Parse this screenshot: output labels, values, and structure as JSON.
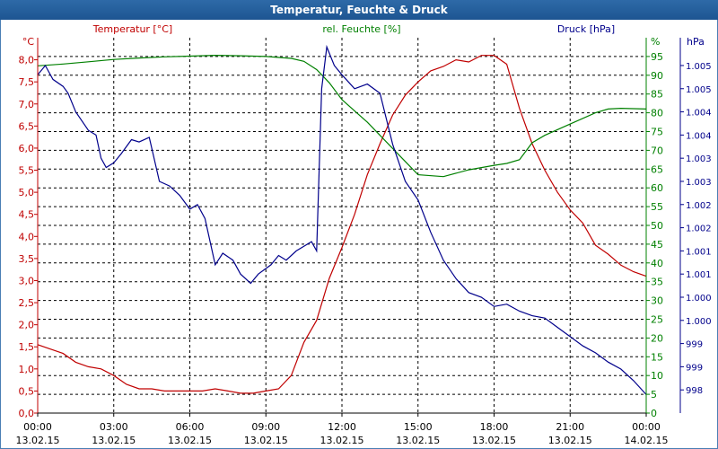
{
  "window": {
    "title": "Temperatur, Feuchte & Druck"
  },
  "colors": {
    "temperature": "#c00000",
    "humidity": "#008000",
    "pressure": "#00008b",
    "grid": "#000000",
    "titlebar": "#1d5592"
  },
  "chart_data": {
    "type": "line",
    "grid": true,
    "legend": "top",
    "x": {
      "range": [
        "2015-02-13 00:00",
        "2015-02-14 00:00"
      ],
      "ticks": [
        {
          "time": "00:00",
          "date": "13.02.15"
        },
        {
          "time": "03:00",
          "date": "13.02.15"
        },
        {
          "time": "06:00",
          "date": "13.02.15"
        },
        {
          "time": "09:00",
          "date": "13.02.15"
        },
        {
          "time": "12:00",
          "date": "13.02.15"
        },
        {
          "time": "15:00",
          "date": "13.02.15"
        },
        {
          "time": "18:00",
          "date": "13.02.15"
        },
        {
          "time": "21:00",
          "date": "13.02.15"
        },
        {
          "time": "00:00",
          "date": "14.02.15"
        }
      ]
    },
    "axes": {
      "temperature": {
        "label": "Temperatur [°C]",
        "unit": "°C",
        "ylim": [
          0,
          8.5
        ],
        "ticks": [
          "0,0",
          "0,5",
          "1,0",
          "1,5",
          "2,0",
          "2,5",
          "3,0",
          "3,5",
          "4,0",
          "4,5",
          "5,0",
          "5,5",
          "6,0",
          "6,5",
          "7,0",
          "7,5",
          "8,0"
        ]
      },
      "humidity": {
        "label": "rel. Feuchte [%]",
        "unit": "%",
        "ylim": [
          0,
          100
        ],
        "ticks": [
          "0",
          "5",
          "10",
          "15",
          "20",
          "25",
          "30",
          "35",
          "40",
          "45",
          "50",
          "55",
          "60",
          "65",
          "70",
          "75",
          "80",
          "85",
          "90",
          "95"
        ]
      },
      "pressure": {
        "label": "Druck [hPa]",
        "unit": "hPa",
        "ylim": [
          997.5,
          1005.6
        ],
        "ticks": [
          {
            "v": 998.0,
            "t": "998"
          },
          {
            "v": 998.5,
            "t": "999"
          },
          {
            "v": 999.0,
            "t": "999"
          },
          {
            "v": 999.5,
            "t": "1.000"
          },
          {
            "v": 1000.0,
            "t": "1.000"
          },
          {
            "v": 1000.5,
            "t": "1.001"
          },
          {
            "v": 1001.0,
            "t": "1.001"
          },
          {
            "v": 1001.5,
            "t": "1.002"
          },
          {
            "v": 1002.0,
            "t": "1.002"
          },
          {
            "v": 1002.5,
            "t": "1.003"
          },
          {
            "v": 1003.0,
            "t": "1.003"
          },
          {
            "v": 1003.5,
            "t": "1.004"
          },
          {
            "v": 1004.0,
            "t": "1.004"
          },
          {
            "v": 1004.5,
            "t": "1.005"
          },
          {
            "v": 1005.0,
            "t": "1.005"
          }
        ]
      }
    },
    "series": [
      {
        "name": "Temperatur [°C]",
        "axis": "temperature",
        "points": [
          [
            0,
            1.55
          ],
          [
            0.5,
            1.45
          ],
          [
            1,
            1.35
          ],
          [
            1.5,
            1.15
          ],
          [
            2,
            1.05
          ],
          [
            2.5,
            1.0
          ],
          [
            3,
            0.85
          ],
          [
            3.5,
            0.65
          ],
          [
            4,
            0.55
          ],
          [
            4.5,
            0.55
          ],
          [
            5,
            0.5
          ],
          [
            5.5,
            0.5
          ],
          [
            6,
            0.5
          ],
          [
            6.5,
            0.5
          ],
          [
            7,
            0.55
          ],
          [
            7.5,
            0.5
          ],
          [
            8,
            0.45
          ],
          [
            8.5,
            0.45
          ],
          [
            9,
            0.5
          ],
          [
            9.5,
            0.55
          ],
          [
            10,
            0.85
          ],
          [
            10.5,
            1.6
          ],
          [
            11,
            2.1
          ],
          [
            11.5,
            3.05
          ],
          [
            12,
            3.75
          ],
          [
            12.5,
            4.5
          ],
          [
            13,
            5.4
          ],
          [
            13.5,
            6.1
          ],
          [
            14,
            6.75
          ],
          [
            14.5,
            7.2
          ],
          [
            15,
            7.5
          ],
          [
            15.5,
            7.75
          ],
          [
            16,
            7.85
          ],
          [
            16.5,
            8.0
          ],
          [
            17,
            7.95
          ],
          [
            17.5,
            8.1
          ],
          [
            18,
            8.1
          ],
          [
            18.5,
            7.9
          ],
          [
            19,
            6.9
          ],
          [
            19.5,
            6.1
          ],
          [
            20,
            5.5
          ],
          [
            20.5,
            5.0
          ],
          [
            21,
            4.6
          ],
          [
            21.5,
            4.3
          ],
          [
            22,
            3.8
          ],
          [
            22.5,
            3.6
          ],
          [
            23,
            3.35
          ],
          [
            23.5,
            3.2
          ],
          [
            24,
            3.1
          ]
        ]
      },
      {
        "name": "rel. Feuchte [%]",
        "axis": "humidity",
        "points": [
          [
            0,
            92.5
          ],
          [
            1,
            93
          ],
          [
            2,
            93.6
          ],
          [
            3,
            94.2
          ],
          [
            4,
            94.6
          ],
          [
            5,
            94.9
          ],
          [
            6,
            95.1
          ],
          [
            7,
            95.3
          ],
          [
            8,
            95.2
          ],
          [
            9,
            95
          ],
          [
            10,
            94.5
          ],
          [
            10.5,
            93.7
          ],
          [
            11,
            91.5
          ],
          [
            11.5,
            88
          ],
          [
            12,
            83.5
          ],
          [
            13,
            77.5
          ],
          [
            14,
            70.5
          ],
          [
            15,
            63.5
          ],
          [
            16,
            63
          ],
          [
            17,
            64.8
          ],
          [
            18,
            66
          ],
          [
            18.5,
            66.5
          ],
          [
            19,
            67.5
          ],
          [
            19.5,
            72
          ],
          [
            20,
            74
          ],
          [
            21,
            77
          ],
          [
            22,
            80
          ],
          [
            22.5,
            81
          ],
          [
            23,
            81.2
          ],
          [
            24,
            81
          ]
        ]
      },
      {
        "name": "Druck [hPa]",
        "axis": "pressure",
        "points": [
          [
            0,
            1004.8
          ],
          [
            0.3,
            1005.0
          ],
          [
            0.6,
            1004.7
          ],
          [
            1,
            1004.55
          ],
          [
            1.2,
            1004.4
          ],
          [
            1.5,
            1004.0
          ],
          [
            2,
            1003.6
          ],
          [
            2.3,
            1003.5
          ],
          [
            2.5,
            1003.0
          ],
          [
            2.7,
            1002.8
          ],
          [
            3,
            1002.9
          ],
          [
            3.3,
            1003.1
          ],
          [
            3.7,
            1003.4
          ],
          [
            4,
            1003.35
          ],
          [
            4.4,
            1003.45
          ],
          [
            4.8,
            1002.5
          ],
          [
            5.2,
            1002.4
          ],
          [
            5.6,
            1002.2
          ],
          [
            6,
            1001.9
          ],
          [
            6.3,
            1002.0
          ],
          [
            6.6,
            1001.7
          ],
          [
            7,
            1000.7
          ],
          [
            7.3,
            1000.95
          ],
          [
            7.7,
            1000.8
          ],
          [
            8,
            1000.5
          ],
          [
            8.4,
            1000.3
          ],
          [
            8.7,
            1000.5
          ],
          [
            9.2,
            1000.7
          ],
          [
            9.5,
            1000.9
          ],
          [
            9.8,
            1000.8
          ],
          [
            10.2,
            1001.0
          ],
          [
            10.5,
            1001.1
          ],
          [
            10.8,
            1001.2
          ],
          [
            11,
            1001.0
          ],
          [
            11.2,
            1004.5
          ],
          [
            11.4,
            1005.4
          ],
          [
            11.7,
            1005.0
          ],
          [
            12,
            1004.8
          ],
          [
            12.5,
            1004.5
          ],
          [
            13,
            1004.6
          ],
          [
            13.5,
            1004.4
          ],
          [
            14,
            1003.3
          ],
          [
            14.5,
            1002.5
          ],
          [
            15,
            1002.1
          ],
          [
            15.5,
            1001.4
          ],
          [
            16,
            1000.8
          ],
          [
            16.5,
            1000.4
          ],
          [
            17,
            1000.1
          ],
          [
            17.5,
            1000.0
          ],
          [
            18,
            999.8
          ],
          [
            18.5,
            999.85
          ],
          [
            19,
            999.7
          ],
          [
            19.5,
            999.6
          ],
          [
            20,
            999.55
          ],
          [
            20.5,
            999.35
          ],
          [
            21,
            999.15
          ],
          [
            21.5,
            998.95
          ],
          [
            22,
            998.8
          ],
          [
            22.5,
            998.6
          ],
          [
            23,
            998.45
          ],
          [
            23.5,
            998.2
          ],
          [
            24,
            997.9
          ]
        ]
      }
    ]
  }
}
